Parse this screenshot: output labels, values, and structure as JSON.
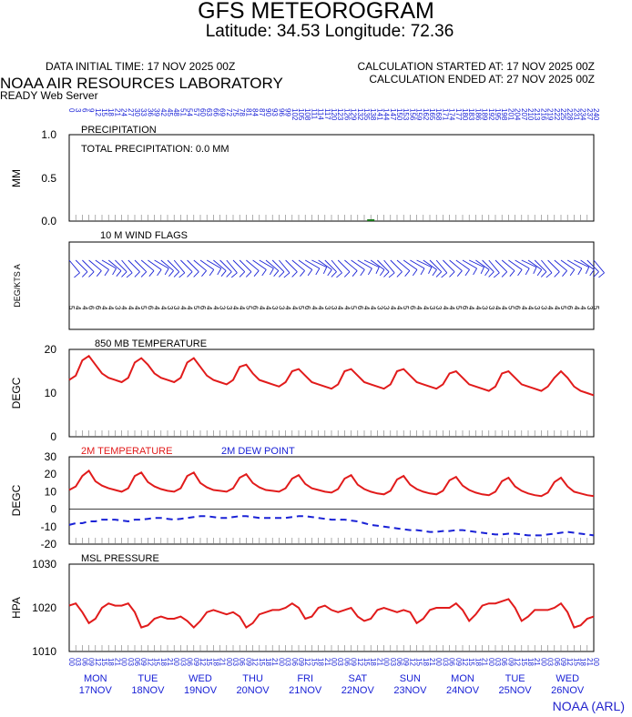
{
  "header": {
    "title": "GFS METEOROGRAM",
    "coords": "Latitude: 34.53 Longitude:  72.36",
    "init_time": "DATA INITIAL TIME: 17 NOV 2025 00Z",
    "calc_start": "CALCULATION STARTED AT: 17 NOV 2025 00Z",
    "calc_end": "CALCULATION ENDED AT: 27 NOV 2025 00Z",
    "lab": "NOAA AIR RESOURCES LABORATORY",
    "server": "READY Web Server"
  },
  "footer": {
    "credit": "NOAA (ARL)"
  },
  "colors": {
    "red": "#e11b1b",
    "blue": "#1a22d6",
    "green": "#1a7a1a",
    "axis": "#000000"
  },
  "chart_data": [
    {
      "type": "bar",
      "title": "PRECIPITATION",
      "annotation": "TOTAL PRECIPITATION:   0.0 MM",
      "ylabel": "MM",
      "ylim": [
        0,
        1
      ],
      "yticks": [
        "1.0",
        "0.5",
        "0.0"
      ],
      "x_hours": [
        138
      ],
      "values": [
        0.0
      ],
      "top_labels": [
        "0",
        "3",
        "6",
        "9",
        "12",
        "15",
        "18",
        "21",
        "24",
        "27",
        "30",
        "33",
        "36",
        "39",
        "42",
        "45",
        "48",
        "51",
        "54",
        "57",
        "60",
        "63",
        "66",
        "69",
        "72",
        "75",
        "78",
        "81",
        "84",
        "87",
        "90",
        "93",
        "96",
        "99",
        "102",
        "105",
        "108",
        "111",
        "114",
        "117",
        "120",
        "123",
        "126",
        "129",
        "132",
        "135",
        "138",
        "141",
        "144",
        "147",
        "150",
        "153",
        "156",
        "159",
        "162",
        "165",
        "168",
        "171",
        "174",
        "177",
        "180",
        "183",
        "186",
        "189",
        "192",
        "195",
        "198",
        "201",
        "204",
        "207",
        "210",
        "213",
        "216",
        "219",
        "222",
        "225",
        "228",
        "231",
        "234",
        "237",
        "240"
      ]
    },
    {
      "type": "wind-barbs",
      "title": "10 M  WIND FLAGS",
      "ylabel": "DEG/KTS  A",
      "wind_dir_deg": [
        40,
        45,
        45,
        50,
        55,
        60,
        50,
        45,
        40,
        45,
        45,
        50,
        55,
        60,
        50,
        45,
        40,
        45,
        45,
        50,
        55,
        60,
        50,
        45,
        40,
        45,
        45,
        50,
        55,
        60,
        50,
        45,
        40,
        45,
        50,
        55,
        60,
        65,
        55,
        45,
        40,
        45,
        50,
        55,
        60,
        65,
        55,
        45,
        40,
        45,
        50,
        55,
        60,
        65,
        55,
        45,
        40,
        45,
        50,
        55,
        60,
        65,
        55,
        45,
        40,
        45,
        50,
        55,
        60,
        65,
        55,
        45,
        40,
        45,
        50,
        55,
        60,
        65,
        55,
        45,
        40
      ],
      "wind_kts": [
        5,
        5,
        6,
        5,
        4,
        3,
        4,
        5,
        5,
        5,
        6,
        5,
        4,
        3,
        4,
        5,
        5,
        5,
        6,
        5,
        4,
        3,
        4,
        5,
        5,
        5,
        6,
        5,
        4,
        3,
        4,
        5,
        5,
        5,
        6,
        5,
        4,
        3,
        4,
        5,
        5,
        5,
        6,
        5,
        4,
        3,
        4,
        5,
        5,
        5,
        6,
        5,
        4,
        3,
        4,
        5,
        5,
        5,
        6,
        5,
        4,
        3,
        4,
        5,
        5,
        5,
        6,
        5,
        4,
        3,
        4,
        5,
        5,
        5,
        6,
        5,
        4,
        3,
        4,
        5,
        5
      ],
      "speed_row": [
        "5",
        "4",
        "4",
        "6",
        "6",
        "4",
        "4",
        "3",
        "4",
        "4",
        "4",
        "5",
        "6",
        "4",
        "4",
        "3",
        "3",
        "4",
        "4",
        "5",
        "6",
        "4",
        "4",
        "3",
        "3",
        "4",
        "4",
        "5",
        "6",
        "4",
        "4",
        "3",
        "3",
        "4",
        "4",
        "5",
        "6",
        "4",
        "4",
        "3",
        "3",
        "4",
        "4",
        "5",
        "6",
        "4",
        "4",
        "3",
        "3",
        "4",
        "4",
        "5",
        "6",
        "4",
        "4",
        "3",
        "3",
        "4",
        "4",
        "5",
        "6",
        "4",
        "4",
        "3",
        "3",
        "4",
        "4",
        "5",
        "6",
        "4",
        "4",
        "3",
        "3",
        "4",
        "4",
        "5",
        "6",
        "4",
        "4",
        "3",
        "5"
      ]
    },
    {
      "type": "line",
      "title": "850 MB  TEMPERATURE",
      "ylabel": "DEGC",
      "ylim": [
        0,
        20
      ],
      "yticks": [
        "20",
        "10",
        "0"
      ],
      "x_step_hours": 3,
      "series": [
        {
          "color": "#e11b1b",
          "values": [
            13,
            14,
            17.5,
            18.5,
            16.5,
            14.5,
            13.5,
            13,
            12.5,
            13.5,
            17,
            18,
            16.5,
            14.5,
            13.5,
            13,
            12.5,
            13.5,
            17,
            18,
            16,
            14,
            13,
            12.5,
            12,
            13,
            16,
            16.5,
            14.5,
            13,
            12.5,
            12,
            11.5,
            12.5,
            15,
            15.5,
            14,
            12.5,
            12,
            11.5,
            11,
            12,
            15,
            15.5,
            14,
            12.5,
            12,
            11.5,
            11,
            12,
            15,
            15.5,
            14,
            12.5,
            12,
            11.5,
            11,
            12,
            14.5,
            15,
            13.5,
            12,
            11.5,
            11,
            10.5,
            11.5,
            14.5,
            15,
            13.5,
            12,
            11.5,
            11,
            10.5,
            11.5,
            13.5,
            15,
            13.5,
            11.5,
            10.5,
            10,
            9.5
          ]
        }
      ]
    },
    {
      "type": "line",
      "title": "",
      "ylabel": "DEGC",
      "ylim": [
        -20,
        30
      ],
      "yticks": [
        "30",
        "20",
        "10",
        "0",
        "-10",
        "-20"
      ],
      "x_step_hours": 3,
      "series": [
        {
          "name": "2M TEMPERATURE",
          "color": "#e11b1b",
          "dashed": false,
          "values": [
            11,
            13,
            19,
            22,
            16,
            13.5,
            12,
            11,
            10,
            12,
            19,
            21,
            15.5,
            13,
            11.5,
            10.5,
            10,
            12,
            19,
            21,
            15,
            12.5,
            11,
            10.5,
            10,
            12,
            18,
            20,
            15,
            12.5,
            11,
            10.5,
            10,
            12,
            17.5,
            19.5,
            14.5,
            12,
            11,
            10,
            9.5,
            11.5,
            17.5,
            19.5,
            14,
            11.5,
            10,
            9,
            8.5,
            10.5,
            17,
            19,
            14,
            11.5,
            10,
            9,
            8.5,
            10.5,
            16.5,
            18.5,
            13.5,
            11,
            9.5,
            8.5,
            8,
            10,
            16,
            18,
            13,
            10.5,
            9,
            8,
            7.5,
            9.5,
            15.5,
            18,
            13,
            10,
            9,
            8,
            7.5
          ]
        },
        {
          "name": "2M  DEW POINT",
          "color": "#1a22d6",
          "dashed": true,
          "values": [
            -9,
            -8,
            -8,
            -7,
            -7,
            -6,
            -6,
            -6,
            -6.5,
            -7,
            -6,
            -6,
            -5.5,
            -5,
            -5,
            -5.5,
            -6,
            -5.5,
            -5,
            -4.5,
            -4,
            -4,
            -4.5,
            -5,
            -5,
            -4.5,
            -4,
            -4,
            -4.5,
            -5,
            -5,
            -5,
            -5,
            -5,
            -4.5,
            -4,
            -4,
            -4.5,
            -5,
            -5.5,
            -6,
            -6,
            -6,
            -6.5,
            -7,
            -8,
            -9,
            -9.5,
            -10,
            -10.5,
            -11,
            -11.5,
            -12,
            -12,
            -12.5,
            -13,
            -13,
            -12.5,
            -12.5,
            -12,
            -12,
            -12.5,
            -13,
            -13.5,
            -14,
            -14.5,
            -14.5,
            -14,
            -14,
            -14.5,
            -15,
            -15,
            -15,
            -14.5,
            -14,
            -13.5,
            -13,
            -13.5,
            -14,
            -14.5,
            -15
          ]
        }
      ]
    },
    {
      "type": "line",
      "title": "MSL PRESSURE",
      "ylabel": "HPA",
      "ylim": [
        1010,
        1030
      ],
      "yticks": [
        "1030",
        "1020",
        "1010"
      ],
      "x_step_hours": 3,
      "series": [
        {
          "color": "#e11b1b",
          "values": [
            1020.5,
            1021,
            1019,
            1016.5,
            1017.5,
            1020,
            1021,
            1020.5,
            1020.5,
            1021,
            1019,
            1015.5,
            1016,
            1017.5,
            1018,
            1017.5,
            1017.5,
            1018,
            1017,
            1015.5,
            1017,
            1019,
            1019.5,
            1019,
            1018.5,
            1019,
            1018,
            1015.5,
            1016.5,
            1018.5,
            1019,
            1019.5,
            1019.5,
            1020,
            1021,
            1020,
            1017.5,
            1018,
            1020,
            1020.5,
            1019.5,
            1019,
            1019.5,
            1020,
            1018,
            1017,
            1017.5,
            1019.5,
            1020,
            1019.5,
            1019,
            1019.5,
            1019,
            1016.5,
            1017.5,
            1019.5,
            1020,
            1020,
            1020,
            1021,
            1019.5,
            1017,
            1018.5,
            1020.5,
            1021,
            1021,
            1021.5,
            1022,
            1020,
            1017,
            1018,
            1019.5,
            1019.5,
            1019.5,
            1020,
            1021,
            1019,
            1015.5,
            1016,
            1017.5,
            1018
          ]
        }
      ]
    }
  ],
  "x_axis": {
    "hour_labels": [
      "00",
      "03",
      "06",
      "09",
      "12",
      "15",
      "18",
      "21"
    ],
    "days": [
      {
        "dow": "MON",
        "date": "17NOV"
      },
      {
        "dow": "TUE",
        "date": "18NOV"
      },
      {
        "dow": "WED",
        "date": "19NOV"
      },
      {
        "dow": "THU",
        "date": "20NOV"
      },
      {
        "dow": "FRI",
        "date": "21NOV"
      },
      {
        "dow": "SAT",
        "date": "22NOV"
      },
      {
        "dow": "SUN",
        "date": "23NOV"
      },
      {
        "dow": "MON",
        "date": "24NOV"
      },
      {
        "dow": "TUE",
        "date": "25NOV"
      },
      {
        "dow": "WED",
        "date": "26NOV"
      }
    ],
    "final_label": "00"
  }
}
